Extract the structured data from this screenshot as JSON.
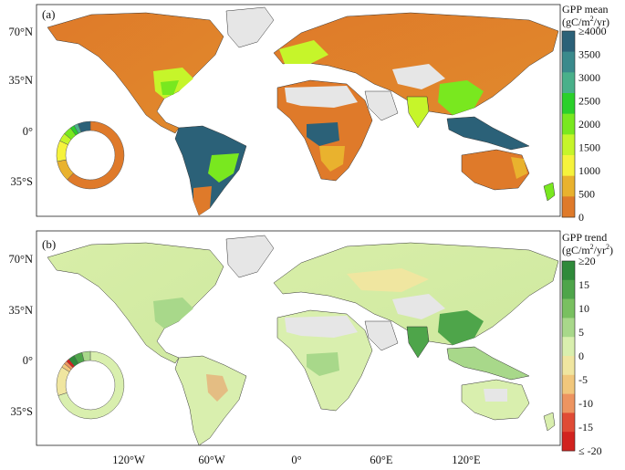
{
  "figure": {
    "panels": [
      {
        "label": "(a)",
        "colorbar": {
          "title_main": "GPP mean",
          "title_unit_pre": "(gC/m",
          "title_unit_sup": "2",
          "title_unit_post": "/yr)",
          "ticks": [
            "≥4000",
            "3500",
            "3000",
            "2500",
            "2000",
            "1500",
            "1000",
            "500",
            "0"
          ],
          "colors": [
            "#2b6178",
            "#3a8a8c",
            "#49b08a",
            "#2bd02b",
            "#79e81f",
            "#c6f52a",
            "#f6f33c",
            "#e9b22e",
            "#df7a2a"
          ]
        },
        "donut": [
          {
            "value": 62,
            "color": "#df7a2a"
          },
          {
            "value": 10,
            "color": "#e9b22e"
          },
          {
            "value": 10,
            "color": "#f6f33c"
          },
          {
            "value": 4,
            "color": "#c6f52a"
          },
          {
            "value": 4,
            "color": "#79e81f"
          },
          {
            "value": 2,
            "color": "#2bd02b"
          },
          {
            "value": 2,
            "color": "#49b08a"
          },
          {
            "value": 6,
            "color": "#2b6178"
          }
        ]
      },
      {
        "label": "(b)",
        "colorbar": {
          "title_main": "GPP trend",
          "title_unit_pre": "(gC/m",
          "title_unit_sup": "2",
          "title_unit_mid": "/yr",
          "title_unit_sup2": "2",
          "title_unit_post": ")",
          "ticks": [
            "≥20",
            "15",
            "10",
            "5",
            "0",
            "-5",
            "-10",
            "-15",
            "≤ -20"
          ],
          "colors": [
            "#2f8a3a",
            "#4ea54a",
            "#79c060",
            "#a8d88a",
            "#d9efae",
            "#f0e6a0",
            "#f1c77c",
            "#ed9460",
            "#e04b35",
            "#d2231f"
          ]
        },
        "donut": [
          {
            "value": 70,
            "color": "#d9efae"
          },
          {
            "value": 14,
            "color": "#f0e6a0"
          },
          {
            "value": 2,
            "color": "#f1c77c"
          },
          {
            "value": 1.5,
            "color": "#ed9460"
          },
          {
            "value": 1.5,
            "color": "#d2231f"
          },
          {
            "value": 3,
            "color": "#2f8a3a"
          },
          {
            "value": 4,
            "color": "#4ea54a"
          },
          {
            "value": 4,
            "color": "#a8d88a"
          }
        ]
      }
    ],
    "lat_ticks": [
      "70°N",
      "35°N",
      "0°",
      "35°S"
    ],
    "lon_ticks": [
      "120°W",
      "60°W",
      "0°",
      "60°E",
      "120°E"
    ]
  }
}
